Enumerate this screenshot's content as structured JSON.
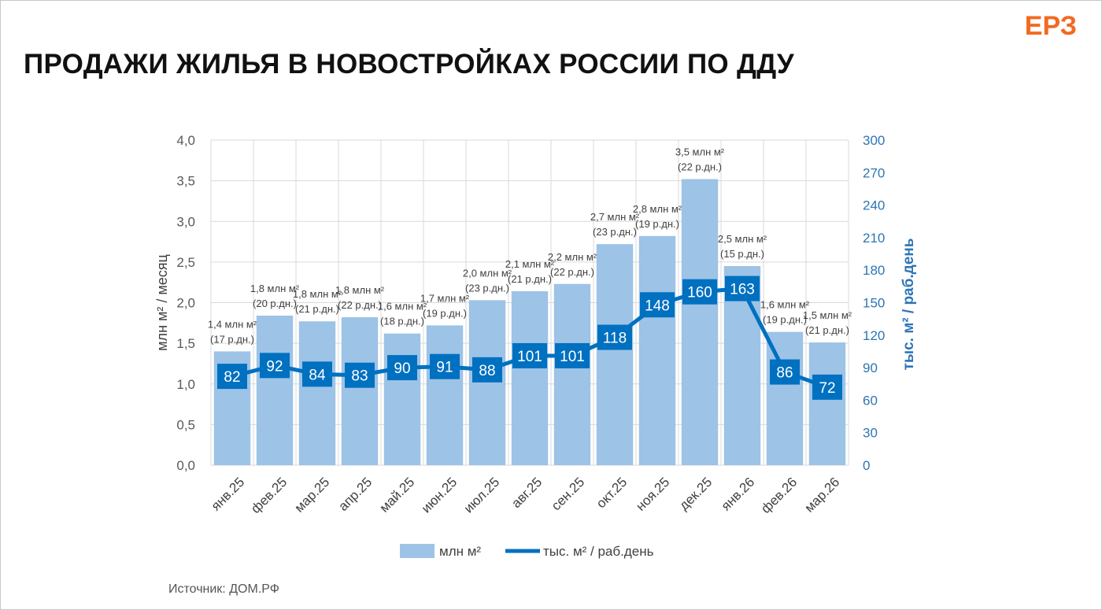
{
  "slide": {
    "logo": "ЕРЗ",
    "title": "ПРОДАЖИ ЖИЛЬЯ В НОВОСТРОЙКАХ РОССИИ ПО ДДУ",
    "source": "Источник: ДОМ.РФ"
  },
  "chart_data": {
    "type": "bar",
    "categories": [
      "янв.25",
      "фев.25",
      "мар.25",
      "апр.25",
      "май.25",
      "июн.25",
      "июл.25",
      "авг.25",
      "сен.25",
      "окт.25",
      "ноя.25",
      "дек.25",
      "янв.26",
      "фев.26",
      "мар.26"
    ],
    "series": [
      {
        "name": "млн м²",
        "type": "bar",
        "axis": "left",
        "color": "#9dc3e6",
        "values": [
          1.4,
          1.84,
          1.77,
          1.82,
          1.62,
          1.72,
          2.03,
          2.14,
          2.23,
          2.72,
          2.82,
          3.52,
          2.45,
          1.64,
          1.51
        ],
        "labels": [
          "1,4 млн м²",
          "1,8 млн м²",
          "1,8 млн м²",
          "1,8 млн м²",
          "1,6 млн м²",
          "1,7 млн м²",
          "2,0 млн м²",
          "2,1 млн м²",
          "2,2 млн м²",
          "2,7 млн м²",
          "2,8 млн м²",
          "3,5 млн м²",
          "2,5 млн м²",
          "1,6 млн м²",
          "1,5 млн м²"
        ],
        "sublabels": [
          "(17 р.дн.)",
          "(20 р.дн.)",
          "(21 р.дн.)",
          "(22 р.дн.)",
          "(18 р.дн.)",
          "(19 р.дн.)",
          "(23 р.дн.)",
          "(21 р.дн.)",
          "(22 р.дн.)",
          "(23 р.дн.)",
          "(19 р.дн.)",
          "(22 р.дн.)",
          "(15 р.дн.)",
          "(19 р.дн.)",
          "(21 р.дн.)"
        ]
      },
      {
        "name": "тыс. м² / раб.день",
        "type": "line",
        "axis": "right",
        "color": "#0070c0",
        "values": [
          82,
          92,
          84,
          83,
          90,
          91,
          88,
          101,
          101,
          118,
          148,
          160,
          163,
          86,
          72
        ]
      }
    ],
    "ylabel": "млн м² / месяц",
    "y2label": "тыс. м² / раб.день",
    "ylim": [
      0,
      4.0
    ],
    "y2lim": [
      0,
      300
    ],
    "yticks": [
      "0,0",
      "0,5",
      "1,0",
      "1,5",
      "2,0",
      "2,5",
      "3,0",
      "3,5",
      "4,0"
    ],
    "y2ticks": [
      "0",
      "30",
      "60",
      "90",
      "120",
      "150",
      "180",
      "210",
      "240",
      "270",
      "300"
    ],
    "grid": true,
    "legend_position": "bottom"
  }
}
